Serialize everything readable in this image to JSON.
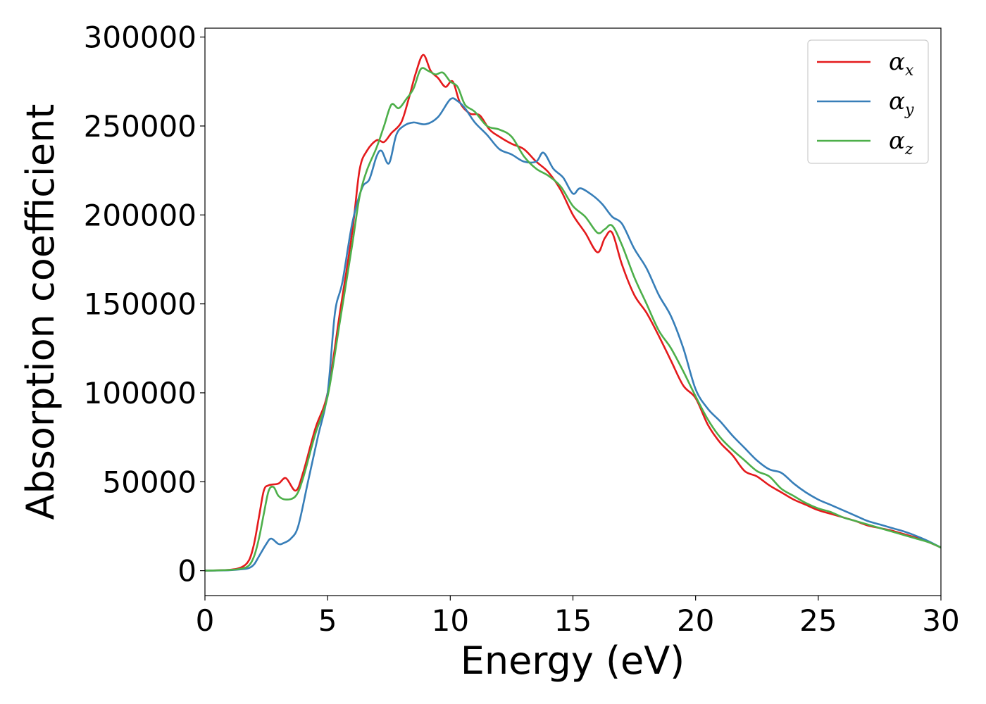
{
  "chart_data": {
    "type": "line",
    "xlabel": "Energy (eV)",
    "ylabel": "Absorption coefficient",
    "xlim": [
      0,
      30
    ],
    "ylim": [
      -14000,
      305000
    ],
    "xticks": [
      0,
      5,
      10,
      15,
      20,
      25,
      30
    ],
    "yticks": [
      0,
      50000,
      100000,
      150000,
      200000,
      250000,
      300000
    ],
    "xtick_labels": [
      "0",
      "5",
      "10",
      "15",
      "20",
      "25",
      "30"
    ],
    "ytick_labels": [
      "0",
      "50000",
      "100000",
      "150000",
      "200000",
      "250000",
      "300000"
    ],
    "grid": false,
    "legend_position": "top-right",
    "series": [
      {
        "name": "αx",
        "base": "α",
        "sub": "x",
        "color": "#e41a1c",
        "x": [
          0,
          1.0,
          1.5,
          1.8,
          2.0,
          2.2,
          2.4,
          2.6,
          3.0,
          3.3,
          3.7,
          4.0,
          4.5,
          5.0,
          5.5,
          6.0,
          6.3,
          6.6,
          7.0,
          7.3,
          7.6,
          8.0,
          8.3,
          8.6,
          8.9,
          9.2,
          9.5,
          9.8,
          10.1,
          10.4,
          10.8,
          11.2,
          11.6,
          12.0,
          12.5,
          13.0,
          13.5,
          14.0,
          14.5,
          15.0,
          15.5,
          16.0,
          16.3,
          16.6,
          17.0,
          17.5,
          18.0,
          18.5,
          19.0,
          19.5,
          20.0,
          20.5,
          21.0,
          21.5,
          22.0,
          22.5,
          23.0,
          23.5,
          24.0,
          24.5,
          25.0,
          25.5,
          26.0,
          26.5,
          27.0,
          27.5,
          28.0,
          28.5,
          29.0,
          29.5,
          30.0
        ],
        "y": [
          0,
          500,
          2000,
          6000,
          15000,
          30000,
          45000,
          48000,
          49000,
          52000,
          45000,
          55000,
          80000,
          100000,
          145000,
          190000,
          225000,
          236000,
          242000,
          241000,
          246000,
          252000,
          265000,
          280000,
          290000,
          281000,
          277000,
          272000,
          275000,
          263000,
          257000,
          256000,
          248000,
          244000,
          240000,
          237000,
          230000,
          224000,
          214000,
          200000,
          190000,
          179000,
          187000,
          190000,
          172000,
          155000,
          145000,
          132000,
          118000,
          104000,
          97000,
          82000,
          72000,
          65000,
          56000,
          53000,
          48000,
          44000,
          40000,
          37000,
          34000,
          32000,
          30000,
          28000,
          25500,
          24000,
          22500,
          20500,
          18500,
          16000,
          13000
        ]
      },
      {
        "name": "αy",
        "base": "α",
        "sub": "y",
        "color": "#377eb8",
        "x": [
          0,
          1.0,
          1.5,
          1.8,
          2.0,
          2.2,
          2.5,
          2.7,
          3.0,
          3.2,
          3.5,
          3.8,
          4.2,
          4.6,
          5.0,
          5.3,
          5.6,
          6.0,
          6.4,
          6.7,
          7.0,
          7.2,
          7.5,
          7.8,
          8.1,
          8.5,
          9.0,
          9.5,
          10.0,
          10.3,
          10.6,
          11.0,
          11.5,
          12.0,
          12.5,
          13.0,
          13.5,
          13.8,
          14.2,
          14.6,
          15.0,
          15.3,
          15.8,
          16.2,
          16.6,
          17.0,
          17.5,
          18.0,
          18.5,
          19.0,
          19.5,
          20.0,
          20.5,
          21.0,
          21.5,
          22.0,
          22.5,
          23.0,
          23.5,
          24.0,
          24.5,
          25.0,
          25.5,
          26.0,
          26.5,
          27.0,
          27.5,
          28.0,
          28.5,
          29.0,
          29.5,
          30.0
        ],
        "y": [
          0,
          300,
          800,
          1500,
          3500,
          8000,
          15000,
          18000,
          15000,
          15500,
          18000,
          25000,
          50000,
          75000,
          100000,
          145000,
          162000,
          195000,
          215000,
          220000,
          233000,
          236000,
          229000,
          245000,
          250000,
          252000,
          251000,
          255000,
          265000,
          264000,
          260000,
          252000,
          245000,
          237000,
          234000,
          230000,
          230000,
          235000,
          226000,
          221000,
          212000,
          215000,
          211000,
          206000,
          199000,
          195000,
          181000,
          170000,
          155000,
          143000,
          125000,
          102000,
          91000,
          84000,
          76000,
          69000,
          62000,
          57000,
          55000,
          49000,
          44000,
          40000,
          37000,
          34000,
          31000,
          28000,
          26000,
          24000,
          22000,
          19500,
          16500,
          13000
        ]
      },
      {
        "name": "αz",
        "base": "α",
        "sub": "z",
        "color": "#4daf4a",
        "x": [
          0,
          1.0,
          1.5,
          1.8,
          2.0,
          2.2,
          2.4,
          2.6,
          2.8,
          3.0,
          3.3,
          3.7,
          4.0,
          4.5,
          5.0,
          5.5,
          6.0,
          6.3,
          6.6,
          7.0,
          7.3,
          7.6,
          7.9,
          8.2,
          8.5,
          8.8,
          9.1,
          9.4,
          9.7,
          10.0,
          10.3,
          10.6,
          11.0,
          11.5,
          12.0,
          12.5,
          13.0,
          13.5,
          14.0,
          14.5,
          15.0,
          15.5,
          16.0,
          16.3,
          16.6,
          17.0,
          17.5,
          18.0,
          18.5,
          19.0,
          19.5,
          20.0,
          20.5,
          21.0,
          21.5,
          22.0,
          22.5,
          23.0,
          23.5,
          24.0,
          24.5,
          25.0,
          25.5,
          26.0,
          26.5,
          27.0,
          27.5,
          28.0,
          28.5,
          29.0,
          29.5,
          30.0
        ],
        "y": [
          0,
          400,
          1200,
          3000,
          8000,
          18000,
          32000,
          45000,
          47000,
          42000,
          40000,
          42000,
          52000,
          77000,
          98000,
          140000,
          183000,
          210000,
          225000,
          238000,
          250000,
          262000,
          260000,
          265000,
          271000,
          282000,
          281000,
          279000,
          280000,
          275000,
          272000,
          262000,
          258000,
          250000,
          248000,
          244000,
          233000,
          226000,
          222000,
          216000,
          205000,
          199000,
          190000,
          192000,
          194000,
          183000,
          165000,
          150000,
          135000,
          125000,
          112000,
          98000,
          85000,
          75000,
          68000,
          62000,
          56000,
          53000,
          46000,
          42000,
          38000,
          35000,
          33000,
          30000,
          28000,
          26000,
          24000,
          22000,
          20000,
          18000,
          16000,
          13000
        ]
      }
    ]
  }
}
